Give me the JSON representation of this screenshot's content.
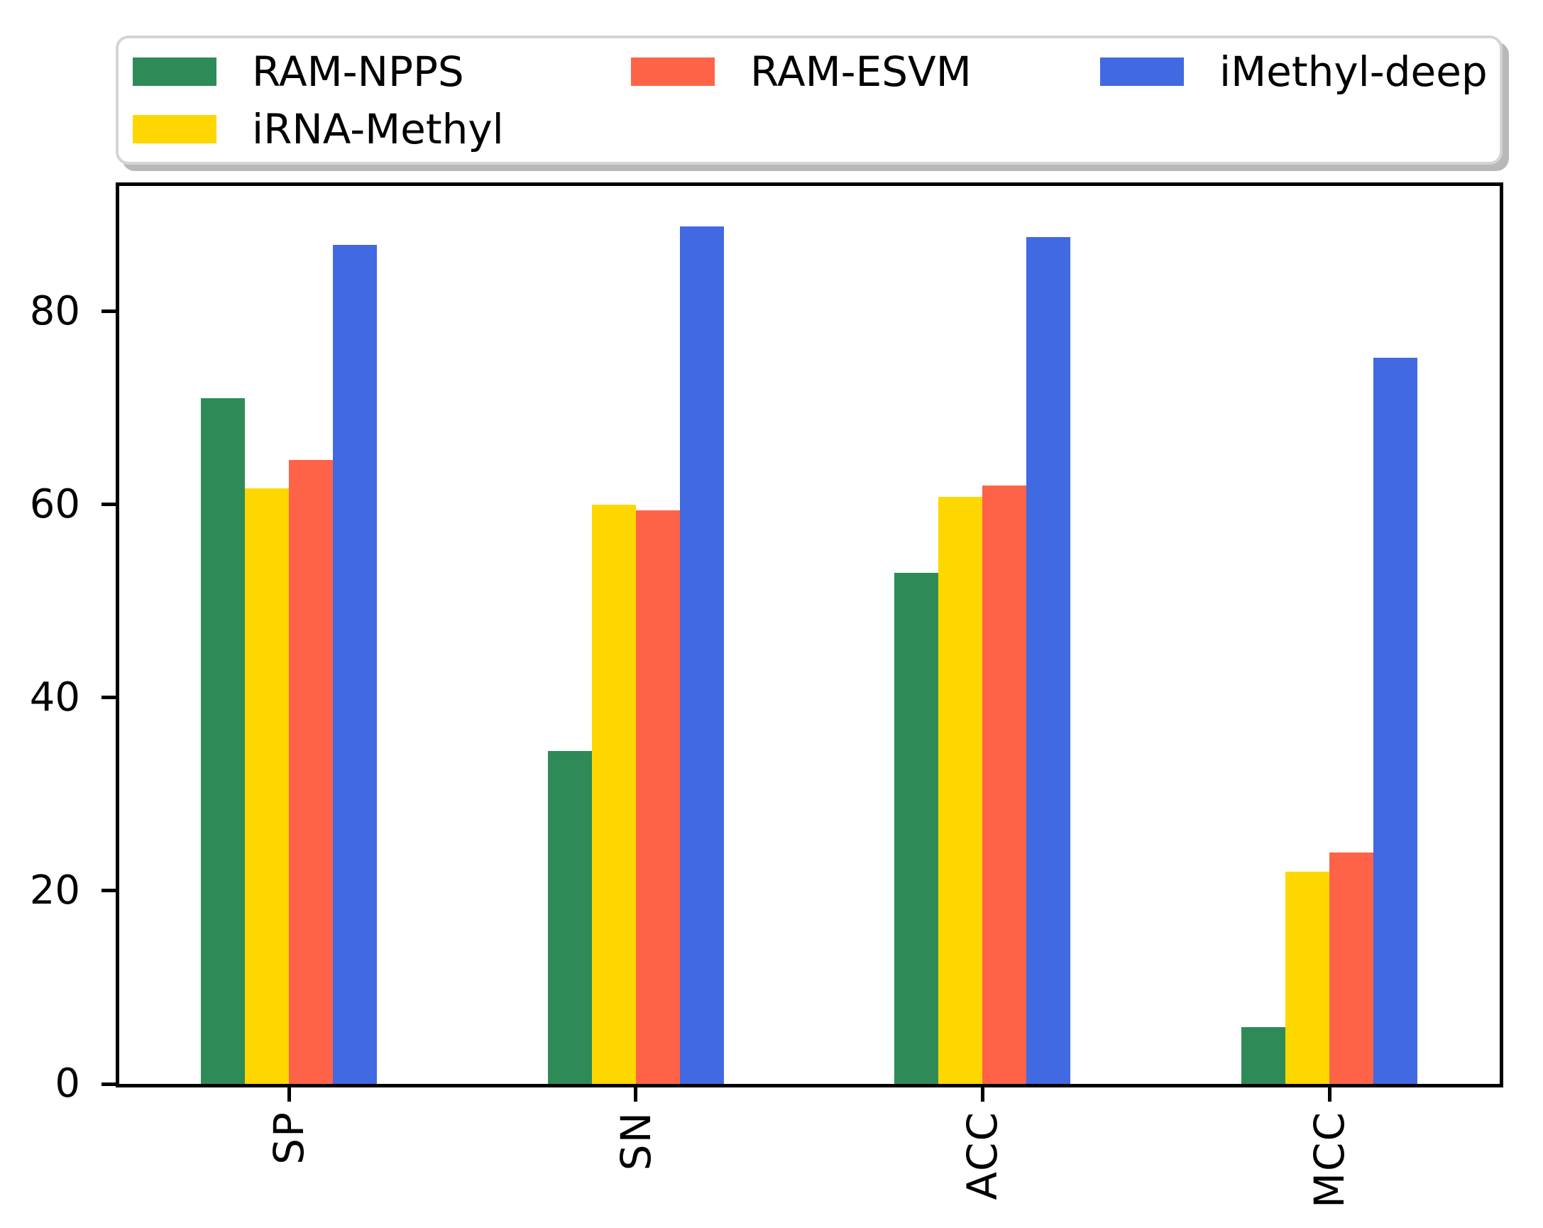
{
  "figure": {
    "background": "#ffffff"
  },
  "legend": {
    "rows": [
      [
        "RAM-NPPS",
        "RAM-ESVM",
        "iMethyl-deep"
      ],
      [
        "iRNA-Methyl"
      ]
    ]
  },
  "chart_data": {
    "type": "bar",
    "title": "",
    "xlabel": "",
    "ylabel": "",
    "categories": [
      "SP",
      "SN",
      "ACC",
      "MCC"
    ],
    "series": [
      {
        "name": "RAM-NPPS",
        "color": "#2E8B57",
        "values": [
          71.0,
          34.5,
          52.9,
          5.9
        ]
      },
      {
        "name": "iRNA-Methyl",
        "color": "#FFD700",
        "values": [
          61.7,
          60.0,
          60.8,
          22.0
        ]
      },
      {
        "name": "RAM-ESVM",
        "color": "#FF6347",
        "values": [
          64.6,
          59.4,
          62.0,
          24.0
        ]
      },
      {
        "name": "iMethyl-deep",
        "color": "#4169E1",
        "values": [
          86.9,
          88.8,
          87.7,
          75.2
        ]
      }
    ],
    "ylim": [
      0,
      93
    ],
    "yticks": [
      0,
      20,
      40,
      60,
      80
    ],
    "legend_position": "top",
    "grid": false,
    "axis_color": "#000000",
    "background_color": "#ffffff"
  }
}
